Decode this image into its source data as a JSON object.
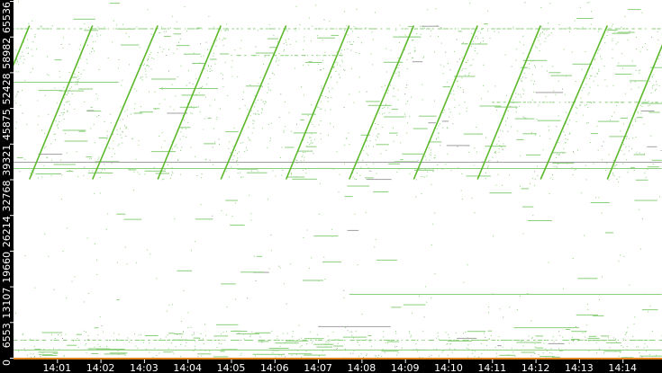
{
  "chart_data": {
    "type": "scatter",
    "title": "",
    "xlabel": "",
    "ylabel": "",
    "x_range": [
      "14:00:00",
      "14:14:54"
    ],
    "ylim": [
      0,
      65536
    ],
    "grid": false,
    "legend": "none",
    "x_ticks": [
      "14:01",
      "14:02",
      "14:03",
      "14:04",
      "14:05",
      "14:06",
      "14:07",
      "14:08",
      "14:09",
      "14:10",
      "14:11",
      "14:12",
      "14:13",
      "14:14"
    ],
    "y_ticks": [
      0,
      6553,
      13107,
      19660,
      26214,
      32768,
      39321,
      45875,
      52428,
      58982,
      65536
    ],
    "y_tick_labels": [
      "0",
      "6553",
      "13107",
      "19660",
      "26214",
      "32768",
      "39321",
      "45875",
      "52428",
      "58982",
      "65536"
    ],
    "colors": {
      "background": "#ffffff",
      "axis_band": "#000000",
      "axis_text": "#ffffff",
      "points": "#8ccf7c",
      "sweep": "#5cb82a",
      "gray_points": "#a0a0a0",
      "baseline": "#e0841e"
    },
    "sweeps": [
      {
        "start": "13:58:55",
        "end": "14:00:22",
        "port_start": 32768,
        "port_end": 61000
      },
      {
        "start": "14:00:22",
        "end": "14:01:49",
        "port_start": 32768,
        "port_end": 61000
      },
      {
        "start": "14:01:49",
        "end": "14:03:19",
        "port_start": 32768,
        "port_end": 61000
      },
      {
        "start": "14:03:19",
        "end": "14:04:46",
        "port_start": 32768,
        "port_end": 61000
      },
      {
        "start": "14:04:46",
        "end": "14:06:16",
        "port_start": 32768,
        "port_end": 61000
      },
      {
        "start": "14:06:16",
        "end": "14:07:43",
        "port_start": 32768,
        "port_end": 61000
      },
      {
        "start": "14:07:43",
        "end": "14:09:12",
        "port_start": 32768,
        "port_end": 61000
      },
      {
        "start": "14:09:12",
        "end": "14:10:40",
        "port_start": 32768,
        "port_end": 61000
      },
      {
        "start": "14:10:40",
        "end": "14:12:07",
        "port_start": 32768,
        "port_end": 61000
      },
      {
        "start": "14:12:07",
        "end": "14:13:39",
        "port_start": 32768,
        "port_end": 61000
      },
      {
        "start": "14:13:39",
        "end": "14:15:06",
        "port_start": 32768,
        "port_end": 61000
      }
    ],
    "streaks": [
      {
        "port": 35990,
        "start": "14:00:00",
        "end": "14:14:54",
        "color": "gray"
      },
      {
        "port": 34830,
        "start": "14:00:00",
        "end": "14:14:54",
        "color": "green"
      },
      {
        "port": 50680,
        "start": "14:00:00",
        "end": "14:02:25",
        "color": "green"
      },
      {
        "port": 49520,
        "start": "14:03:21",
        "end": "14:04:42",
        "color": "green"
      },
      {
        "port": 60500,
        "start": "14:00:00",
        "end": "14:14:54",
        "color": "green_dotted"
      },
      {
        "port": 55600,
        "start": "14:05:00",
        "end": "14:07:30",
        "color": "green_dotted"
      },
      {
        "port": 47000,
        "start": "14:11:00",
        "end": "14:14:54",
        "color": "green_dotted"
      },
      {
        "port": 11720,
        "start": "14:07:43",
        "end": "14:14:54",
        "color": "green"
      },
      {
        "port": 48800,
        "start": "14:12:00",
        "end": "14:12:38",
        "color": "gray"
      },
      {
        "port": 5800,
        "start": "14:07:00",
        "end": "14:08:40",
        "color": "gray"
      },
      {
        "port": 5600,
        "start": "14:11:30",
        "end": "14:13:00",
        "color": "green"
      },
      {
        "port": 1500,
        "start": "14:00:00",
        "end": "14:14:54",
        "color": "green"
      },
      {
        "port": 3300,
        "start": "14:00:00",
        "end": "14:14:54",
        "color": "green_dotted"
      }
    ],
    "traffic_bands": [
      {
        "port_min": 0,
        "port_max": 5000,
        "density": 1.0
      },
      {
        "port_min": 5000,
        "port_max": 32768,
        "density": 0.08
      },
      {
        "port_min": 32768,
        "port_max": 61500,
        "density": 0.35
      },
      {
        "port_min": 61500,
        "port_max": 65536,
        "density": 0.1
      }
    ]
  }
}
